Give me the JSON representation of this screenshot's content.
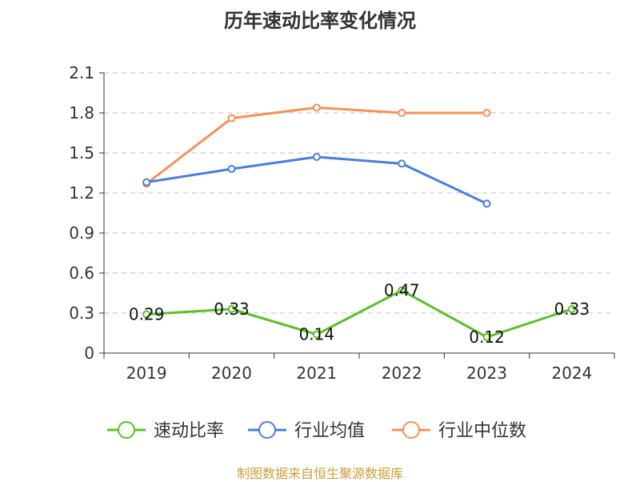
{
  "chart_data": {
    "type": "line",
    "title": "历年速动比率变化情况",
    "categories": [
      "2019",
      "2020",
      "2021",
      "2022",
      "2023",
      "2024"
    ],
    "ylim": [
      0,
      2.1
    ],
    "yticks": [
      "0",
      "0.3",
      "0.6",
      "0.9",
      "1.2",
      "1.5",
      "1.8",
      "2.1"
    ],
    "ytick_values": [
      0,
      0.3,
      0.6,
      0.9,
      1.2,
      1.5,
      1.8,
      2.1
    ],
    "grid": "horizontal dashed",
    "legend_position": "bottom",
    "series": [
      {
        "name": "速动比率",
        "color": "#5cbf2a",
        "values": [
          0.29,
          0.33,
          0.14,
          0.47,
          0.12,
          0.33
        ],
        "labels": [
          "0.29",
          "0.33",
          "0.14",
          "0.47",
          "0.12",
          "0.33"
        ],
        "show_labels": true
      },
      {
        "name": "行业均值",
        "color": "#4a7fdc",
        "values": [
          1.28,
          1.38,
          1.47,
          1.42,
          1.12,
          null
        ],
        "show_labels": false
      },
      {
        "name": "行业中位数",
        "color": "#f5915a",
        "values": [
          1.27,
          1.76,
          1.84,
          1.8,
          1.8,
          null
        ],
        "show_labels": false
      }
    ]
  },
  "footer": {
    "source": "制图数据来自恒生聚源数据库"
  }
}
